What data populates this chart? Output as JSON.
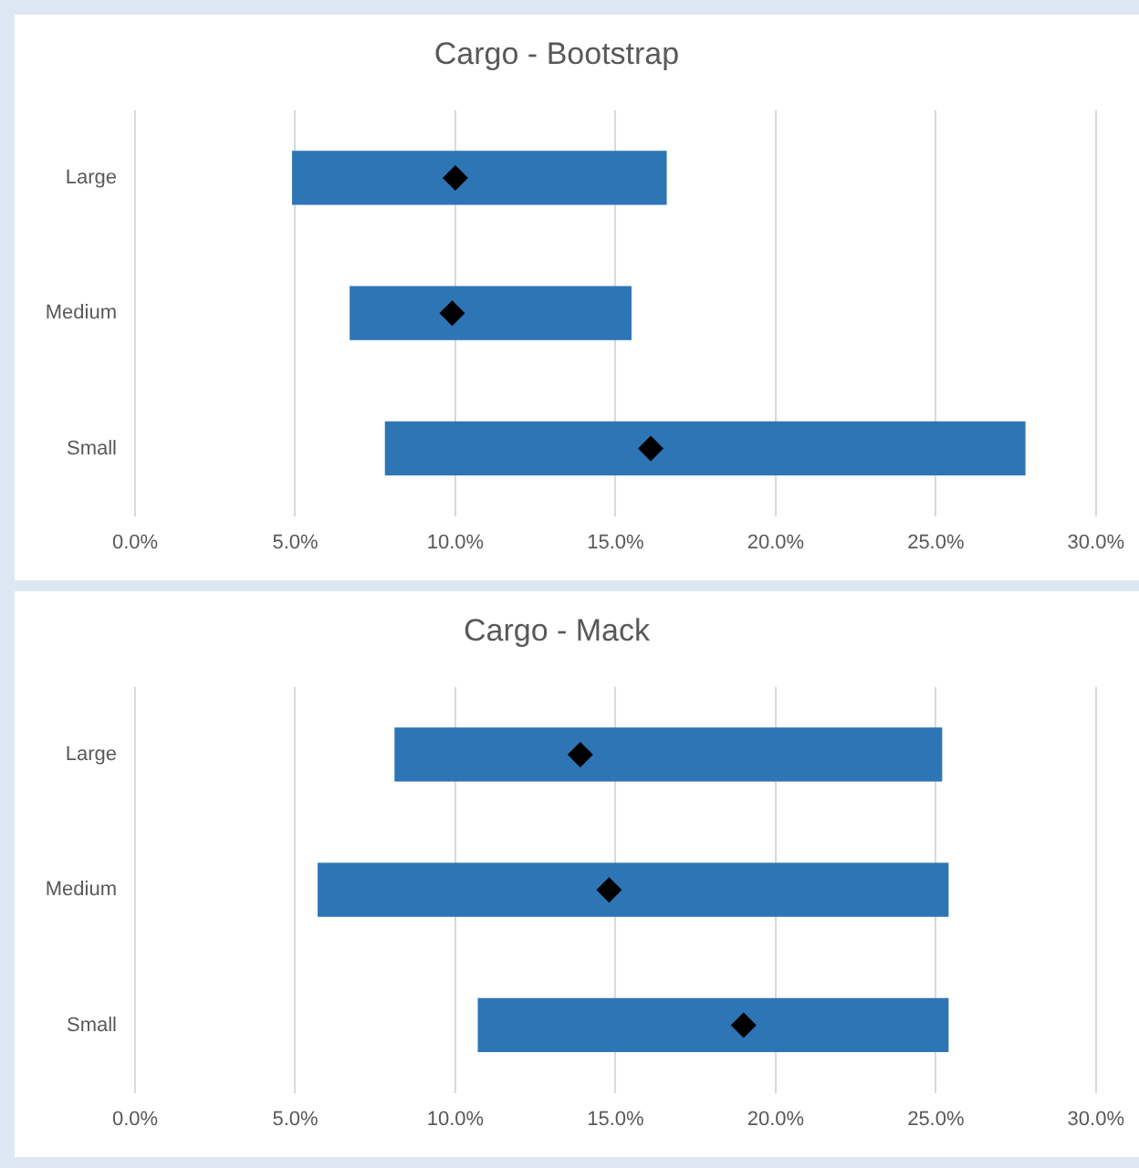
{
  "chart_data": [
    {
      "type": "bar",
      "title": "Cargo - Bootstrap",
      "orientation": "horizontal",
      "categories": [
        "Large",
        "Medium",
        "Small"
      ],
      "series": [
        {
          "color": "#2e75b6",
          "base": [
            4.9,
            6.7,
            7.8
          ],
          "values": [
            11.7,
            8.8,
            20.0
          ]
        },
        {
          "type": "scatter",
          "color": "#000000",
          "marker": "diamond",
          "x": [
            "Large",
            "Medium",
            "Small"
          ],
          "values": [
            10.0,
            9.9,
            16.1
          ]
        }
      ],
      "xlim": [
        0,
        30
      ],
      "xticks": [
        {
          "value": 0,
          "label": "0.0%"
        },
        {
          "value": 5,
          "label": "5.0%"
        },
        {
          "value": 10,
          "label": "10.0%"
        },
        {
          "value": 15,
          "label": "15.0%"
        },
        {
          "value": 20,
          "label": "20.0%"
        },
        {
          "value": 25,
          "label": "25.0%"
        },
        {
          "value": 30,
          "label": "30.0%"
        }
      ],
      "grid": "x",
      "legend": false
    },
    {
      "type": "bar",
      "title": "Cargo - Mack",
      "orientation": "horizontal",
      "categories": [
        "Large",
        "Medium",
        "Small"
      ],
      "series": [
        {
          "color": "#2e75b6",
          "base": [
            8.1,
            5.7,
            10.7
          ],
          "values": [
            17.1,
            19.7,
            14.7
          ]
        },
        {
          "type": "scatter",
          "color": "#000000",
          "marker": "diamond",
          "x": [
            "Large",
            "Medium",
            "Small"
          ],
          "values": [
            13.9,
            14.8,
            19.0
          ]
        }
      ],
      "xlim": [
        0,
        30
      ],
      "xticks": [
        {
          "value": 0,
          "label": "0.0%"
        },
        {
          "value": 5,
          "label": "5.0%"
        },
        {
          "value": 10,
          "label": "10.0%"
        },
        {
          "value": 15,
          "label": "15.0%"
        },
        {
          "value": 20,
          "label": "20.0%"
        },
        {
          "value": 25,
          "label": "25.0%"
        },
        {
          "value": 30,
          "label": "30.0%"
        }
      ],
      "grid": "x",
      "legend": false
    }
  ]
}
